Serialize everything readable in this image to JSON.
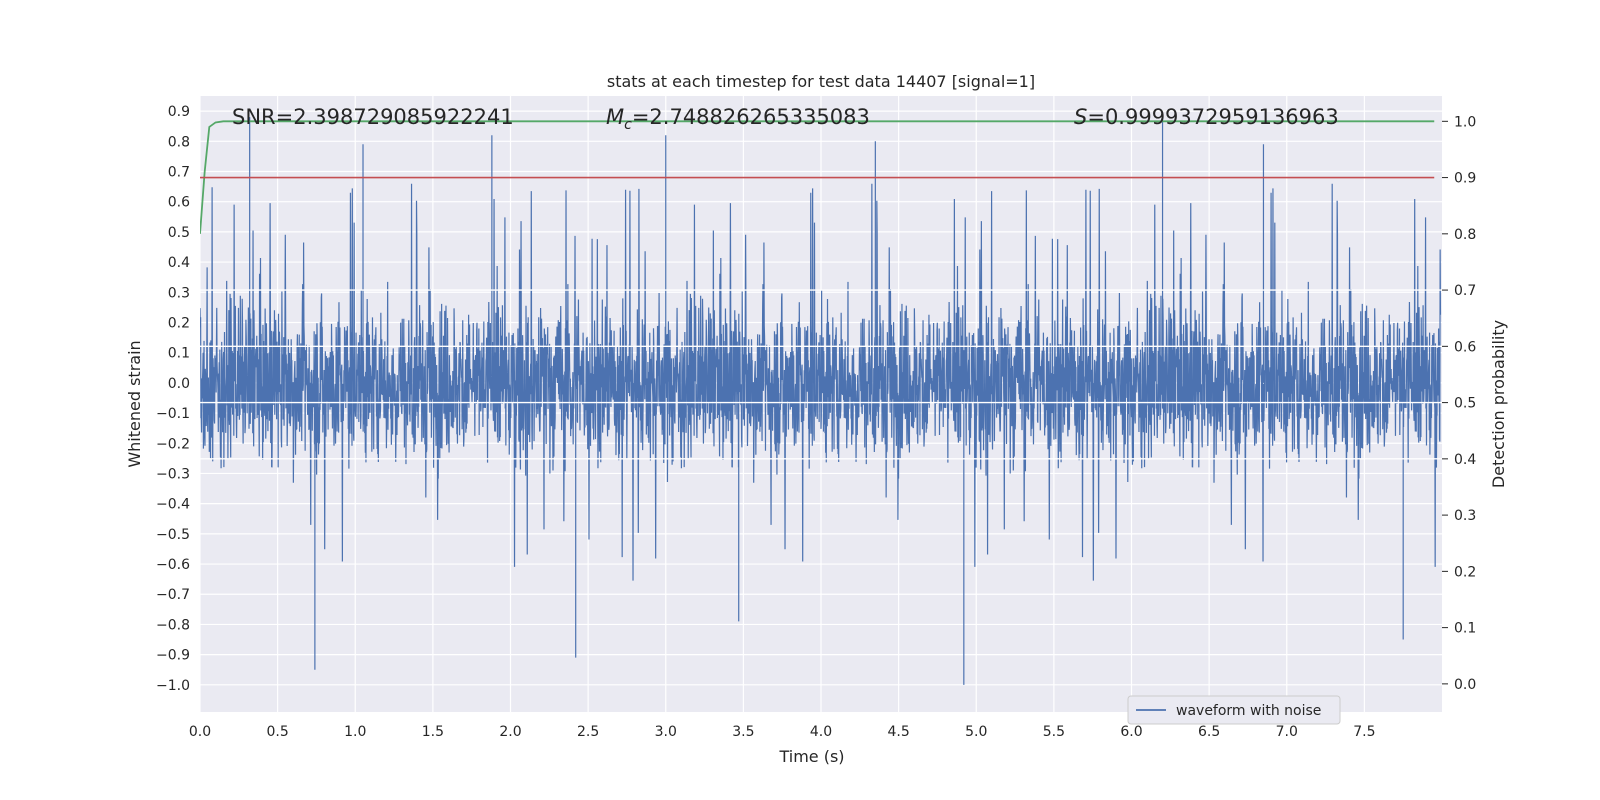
{
  "chart_data": {
    "type": "line",
    "title": "stats at each timestep for test data 14407 [signal=1]",
    "xlabel": "Time (s)",
    "ylabel": "Whitened strain",
    "y2label": "Detection probability",
    "xlim": [
      0.0,
      8.0
    ],
    "ylim": [
      -1.09,
      0.95
    ],
    "y2lim": [
      -0.05,
      1.045
    ],
    "x_ticks": [
      "0.0",
      "0.5",
      "1.0",
      "1.5",
      "2.0",
      "2.5",
      "3.0",
      "3.5",
      "4.0",
      "4.5",
      "5.0",
      "5.5",
      "6.0",
      "6.5",
      "7.0",
      "7.5"
    ],
    "y_ticks": [
      "0.9",
      "0.8",
      "0.7",
      "0.6",
      "0.5",
      "0.4",
      "0.3",
      "0.2",
      "0.1",
      "0.0",
      "−0.1",
      "−0.2",
      "−0.3",
      "−0.4",
      "−0.5",
      "−0.6",
      "−0.7",
      "−0.8",
      "−0.9",
      "−1.0"
    ],
    "y2_ticks": [
      "1.0",
      "0.9",
      "0.8",
      "0.7",
      "0.6",
      "0.5",
      "0.4",
      "0.3",
      "0.2",
      "0.1",
      "0.0"
    ],
    "grid": true,
    "legend_position": "lower-right",
    "annotations": {
      "snr": "SNR=2.398729085922241",
      "mc_symbol": "M",
      "mc_sub": "c",
      "mc_value": "=2.748826265335083",
      "s_symbol": "S",
      "s_value": "=0.9999372959136963"
    },
    "series": [
      {
        "name": "waveform with noise",
        "axis": "left",
        "kind": "dense-noise",
        "typical_envelope": [
          -0.43,
          0.43
        ],
        "notable_peaks": [
          {
            "x": 0.32,
            "y": 0.88
          },
          {
            "x": 1.05,
            "y": 0.79
          },
          {
            "x": 1.88,
            "y": 0.82
          },
          {
            "x": 3.0,
            "y": 0.82
          },
          {
            "x": 4.35,
            "y": 0.8
          },
          {
            "x": 6.2,
            "y": 0.88
          },
          {
            "x": 6.85,
            "y": 0.79
          }
        ],
        "notable_troughs": [
          {
            "x": 0.74,
            "y": -0.95
          },
          {
            "x": 2.42,
            "y": -0.91
          },
          {
            "x": 3.47,
            "y": -0.79
          },
          {
            "x": 4.92,
            "y": -1.0
          },
          {
            "x": 7.75,
            "y": -0.85
          }
        ],
        "color": "#4c72b0"
      },
      {
        "axis": "right",
        "x": [
          0.0,
          0.03,
          0.06,
          0.1,
          0.15,
          0.3,
          1.0,
          2.0,
          3.0,
          4.0,
          5.0,
          6.0,
          7.0,
          7.95
        ],
        "values": [
          0.8,
          0.91,
          0.99,
          0.998,
          1.0,
          1.0,
          1.0,
          1.0,
          1.0,
          1.0,
          1.0,
          1.0,
          1.0,
          1.0
        ],
        "color": "#55a868"
      },
      {
        "axis": "right",
        "x": [
          0.0,
          7.95
        ],
        "values": [
          0.9,
          0.9
        ],
        "color": "#c44e52"
      }
    ],
    "colors": {
      "plot_bg": "#eaeaf2",
      "grid": "#ffffff",
      "text": "#262626"
    }
  }
}
